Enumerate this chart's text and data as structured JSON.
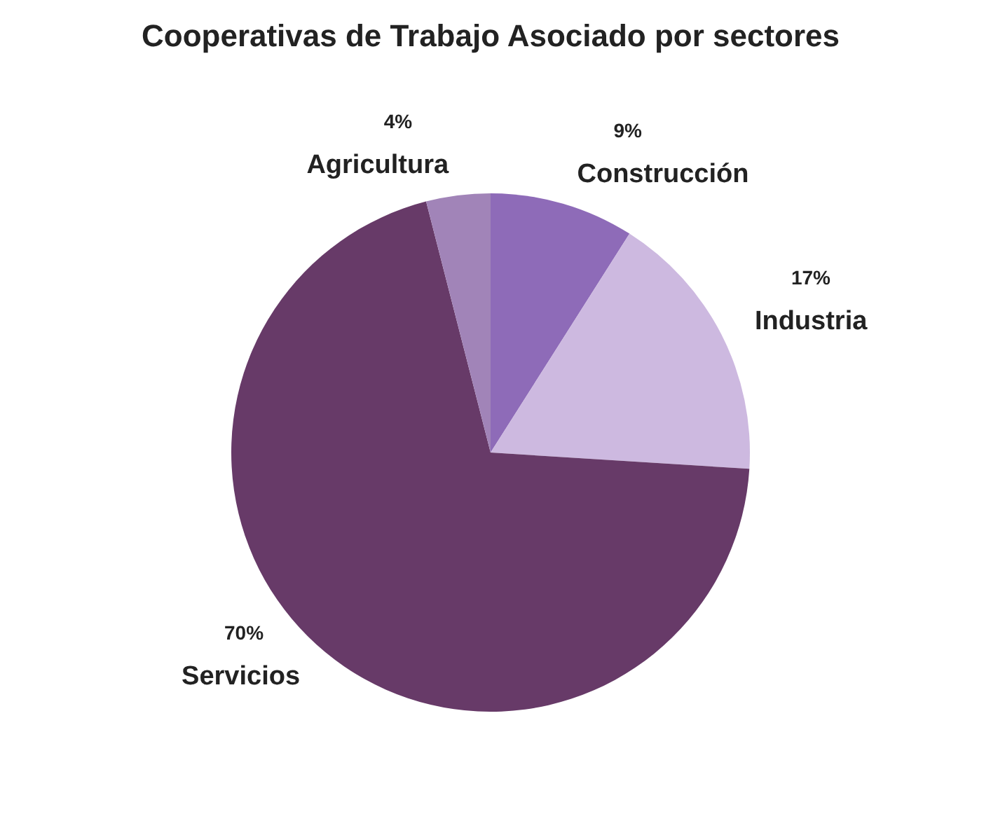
{
  "chart_data": {
    "type": "pie",
    "title": "Cooperativas de Trabajo Asociado por sectores",
    "categories": [
      "Construcción",
      "Industria",
      "Servicios",
      "Agricultura"
    ],
    "values": [
      9,
      17,
      70,
      4
    ],
    "colors": [
      "#8e6bb8",
      "#cdb9e0",
      "#673a68",
      "#a184b8"
    ],
    "value_labels": [
      "9%",
      "17%",
      "70%",
      "4%"
    ],
    "legend": false
  }
}
